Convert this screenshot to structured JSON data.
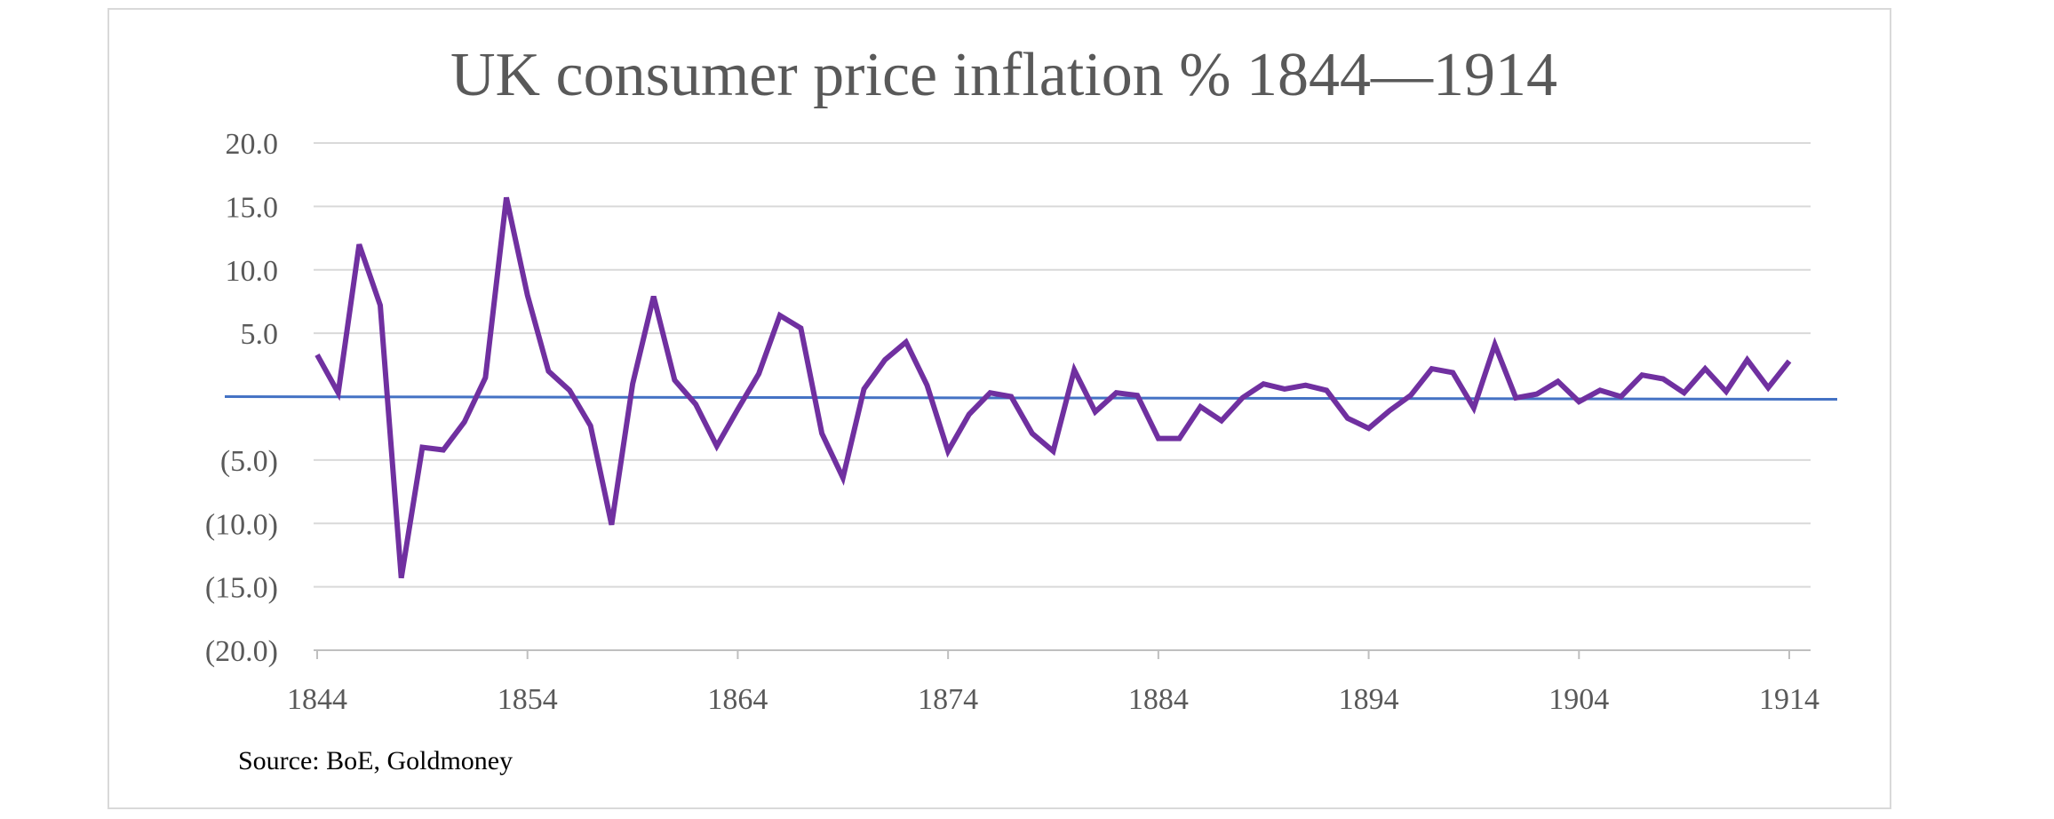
{
  "chart_data": {
    "type": "line",
    "title": "UK consumer price inflation % 1844—1914",
    "source": "Source: BoE, Goldmoney",
    "xlabel": "",
    "ylabel": "",
    "xlim": [
      1844,
      1914
    ],
    "ylim": [
      -20,
      20
    ],
    "y_ticks": [
      20,
      15,
      10,
      5,
      -5,
      -10,
      -15,
      -20
    ],
    "y_tick_labels": [
      "20.0",
      "15.0",
      "10.0",
      "5.0",
      "(5.0)",
      "(10.0)",
      "(15.0)",
      "(20.0)"
    ],
    "x_ticks": [
      1844,
      1854,
      1864,
      1874,
      1884,
      1894,
      1904,
      1914
    ],
    "x_tick_labels": [
      "1844",
      "1854",
      "1864",
      "1874",
      "1884",
      "1894",
      "1904",
      "1914"
    ],
    "grid": true,
    "legend": "none",
    "reference_line": {
      "y": 0,
      "color": "#4472c4"
    },
    "series": [
      {
        "color": "#7030a0",
        "x": [
          1844,
          1845,
          1846,
          1847,
          1848,
          1849,
          1850,
          1851,
          1852,
          1853,
          1854,
          1855,
          1856,
          1857,
          1858,
          1859,
          1860,
          1861,
          1862,
          1863,
          1864,
          1865,
          1866,
          1867,
          1868,
          1869,
          1870,
          1871,
          1872,
          1873,
          1874,
          1875,
          1876,
          1877,
          1878,
          1879,
          1880,
          1881,
          1882,
          1883,
          1884,
          1885,
          1886,
          1887,
          1888,
          1889,
          1890,
          1891,
          1892,
          1893,
          1894,
          1895,
          1896,
          1897,
          1898,
          1899,
          1900,
          1901,
          1902,
          1903,
          1904,
          1905,
          1906,
          1907,
          1908,
          1909,
          1910,
          1911,
          1912,
          1913,
          1914
        ],
        "values": [
          3.3,
          0.3,
          12.0,
          7.2,
          -14.3,
          -4.0,
          -4.2,
          -2.0,
          1.5,
          15.7,
          8.0,
          2.0,
          0.5,
          -2.3,
          -10.1,
          1.0,
          7.9,
          1.3,
          -0.6,
          -3.9,
          -1.0,
          1.8,
          6.4,
          5.4,
          -2.9,
          -6.4,
          0.6,
          2.9,
          4.3,
          0.9,
          -4.3,
          -1.4,
          0.3,
          0.0,
          -2.9,
          -4.3,
          2.1,
          -1.2,
          0.3,
          0.1,
          -3.3,
          -3.3,
          -0.8,
          -1.9,
          -0.1,
          1.0,
          0.6,
          0.9,
          0.5,
          -1.7,
          -2.5,
          -1.1,
          0.1,
          2.2,
          1.9,
          -0.9,
          4.1,
          -0.1,
          0.2,
          1.2,
          -0.4,
          0.5,
          0.0,
          1.7,
          1.4,
          0.3,
          2.2,
          0.4,
          2.9,
          0.7,
          2.8
        ]
      }
    ]
  }
}
